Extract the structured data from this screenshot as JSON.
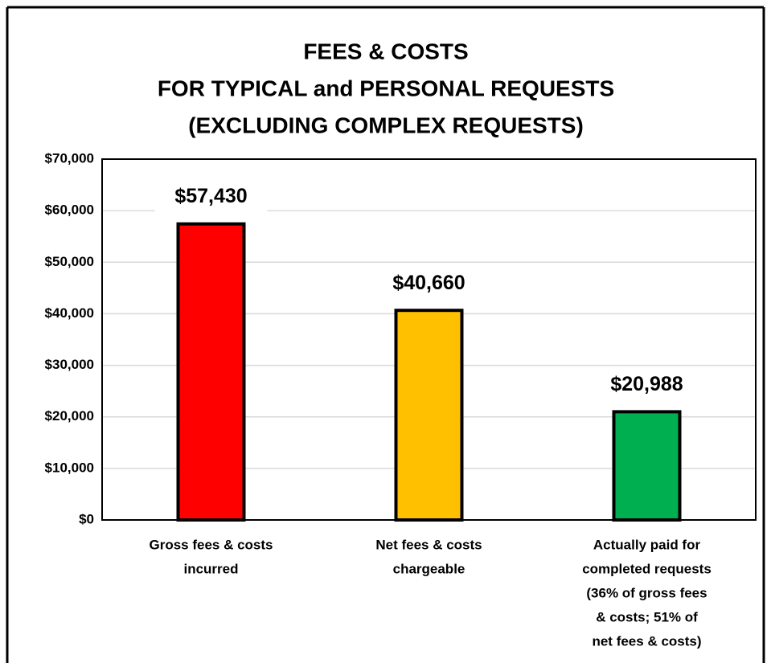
{
  "chart_data": {
    "type": "bar",
    "title": [
      "FEES & COSTS",
      "FOR TYPICAL and PERSONAL REQUESTS",
      "(EXCLUDING COMPLEX REQUESTS)"
    ],
    "categories": [
      [
        "Gross fees & costs",
        "incurred"
      ],
      [
        "Net fees & costs",
        "chargeable"
      ],
      [
        "Actually paid for",
        "completed requests",
        "(36% of gross fees",
        "& costs; 51% of",
        "net fees & costs)"
      ]
    ],
    "values": [
      57430,
      40660,
      20988
    ],
    "value_labels": [
      "$57,430",
      "$40,660",
      "$20,988"
    ],
    "colors": [
      "#ff0000",
      "#ffc000",
      "#00b050"
    ],
    "ylim": [
      0,
      70000
    ],
    "yticks": [
      {
        "value": 0,
        "label": "$0"
      },
      {
        "value": 10000,
        "label": "$10,000"
      },
      {
        "value": 20000,
        "label": "$20,000"
      },
      {
        "value": 30000,
        "label": "$30,000"
      },
      {
        "value": 40000,
        "label": "$40,000"
      },
      {
        "value": 50000,
        "label": "$50,000"
      },
      {
        "value": 60000,
        "label": "$60,000"
      },
      {
        "value": 70000,
        "label": "$70,000"
      }
    ],
    "grid": true
  }
}
